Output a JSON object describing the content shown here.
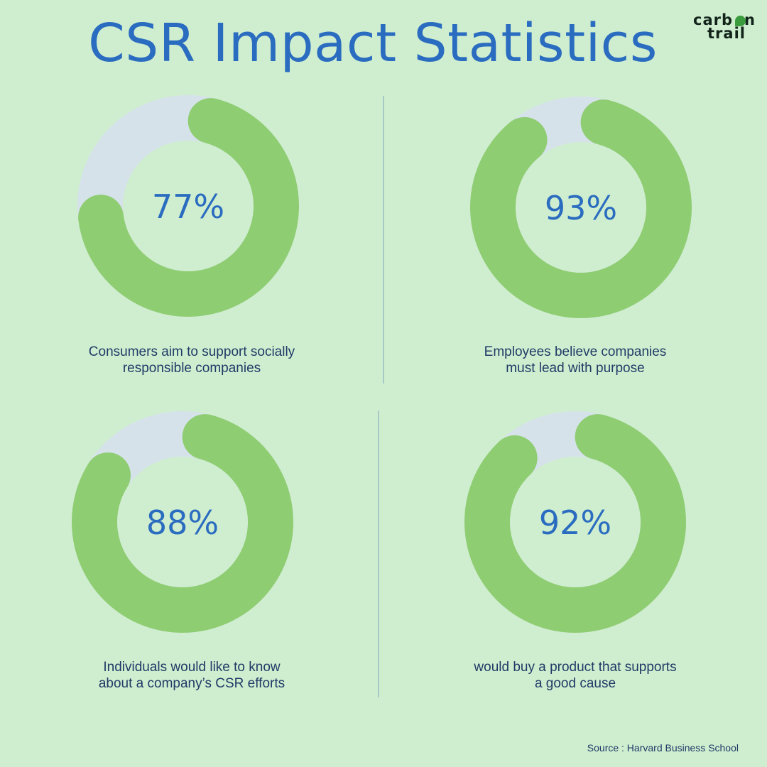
{
  "title": "CSR Impact Statistics",
  "logo": {
    "line1": "carb",
    "line1_end": "n",
    "line2": "trail",
    "brand_color": "#3a9c3d"
  },
  "colors": {
    "background": "#cfeed0",
    "ring": "#8fcd72",
    "track": "#d6e2ea",
    "accent_text": "#2a6cbf",
    "caption_text": "#213a66"
  },
  "chart_data": [
    {
      "type": "pie",
      "value": 77,
      "label": "77%",
      "caption": "Consumers aim to support socially\nresponsible companies"
    },
    {
      "type": "pie",
      "value": 93,
      "label": "93%",
      "caption": "Employees believe companies\nmust lead with purpose"
    },
    {
      "type": "pie",
      "value": 88,
      "label": "88%",
      "caption": "Individuals would like to know\nabout a company’s CSR efforts"
    },
    {
      "type": "pie",
      "value": 92,
      "label": "92%",
      "caption": "would buy a product that supports\na good cause"
    }
  ],
  "source": "Source : Harvard Business School"
}
